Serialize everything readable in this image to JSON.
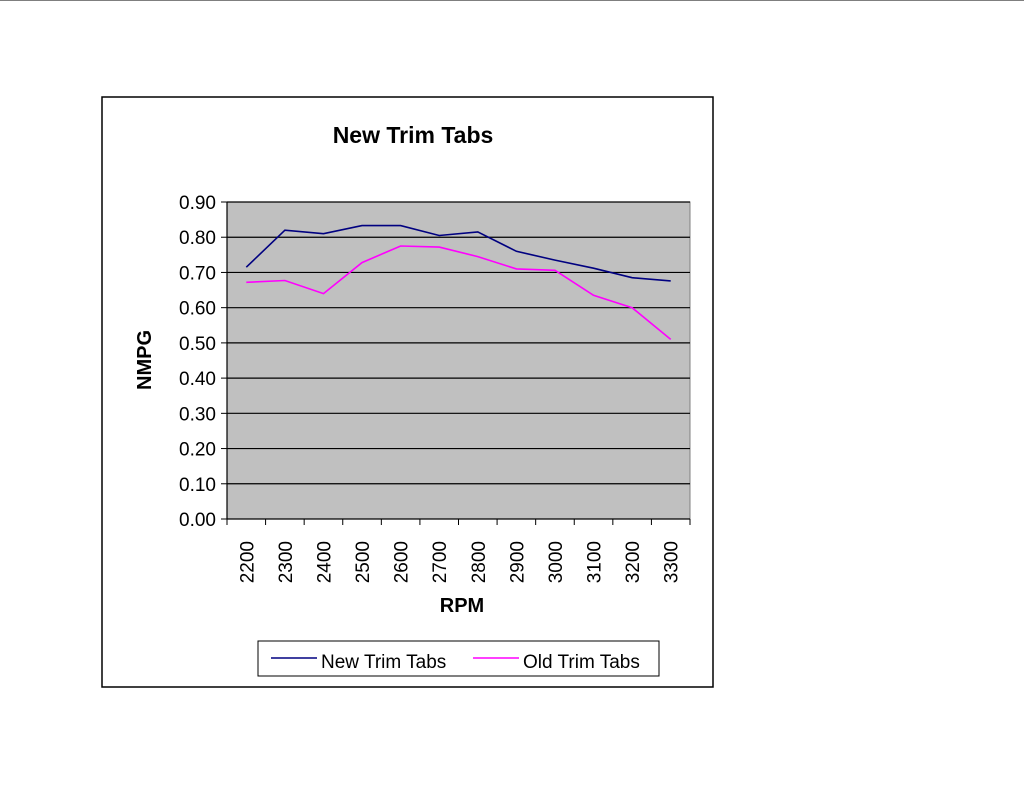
{
  "chart_data": {
    "type": "line",
    "title": "New Trim Tabs",
    "xlabel": "RPM",
    "ylabel": "NMPG",
    "categories": [
      "2200",
      "2300",
      "2400",
      "2500",
      "2600",
      "2700",
      "2800",
      "2900",
      "3000",
      "3100",
      "3200",
      "3300"
    ],
    "ylim": [
      0,
      0.9
    ],
    "yticks": [
      "0.00",
      "0.10",
      "0.20",
      "0.30",
      "0.40",
      "0.50",
      "0.60",
      "0.70",
      "0.80",
      "0.90"
    ],
    "grid": true,
    "legend_position": "bottom",
    "series": [
      {
        "name": "New Trim Tabs",
        "color": "#000080",
        "values": [
          0.715,
          0.82,
          0.81,
          0.833,
          0.833,
          0.805,
          0.815,
          0.76,
          0.735,
          0.712,
          0.685,
          0.676
        ]
      },
      {
        "name": "Old Trim Tabs",
        "color": "#ff00ff",
        "values": [
          0.672,
          0.677,
          0.64,
          0.728,
          0.775,
          0.772,
          0.745,
          0.71,
          0.706,
          0.635,
          0.6,
          0.51
        ]
      }
    ],
    "plot_background": "#c0c0c0"
  }
}
